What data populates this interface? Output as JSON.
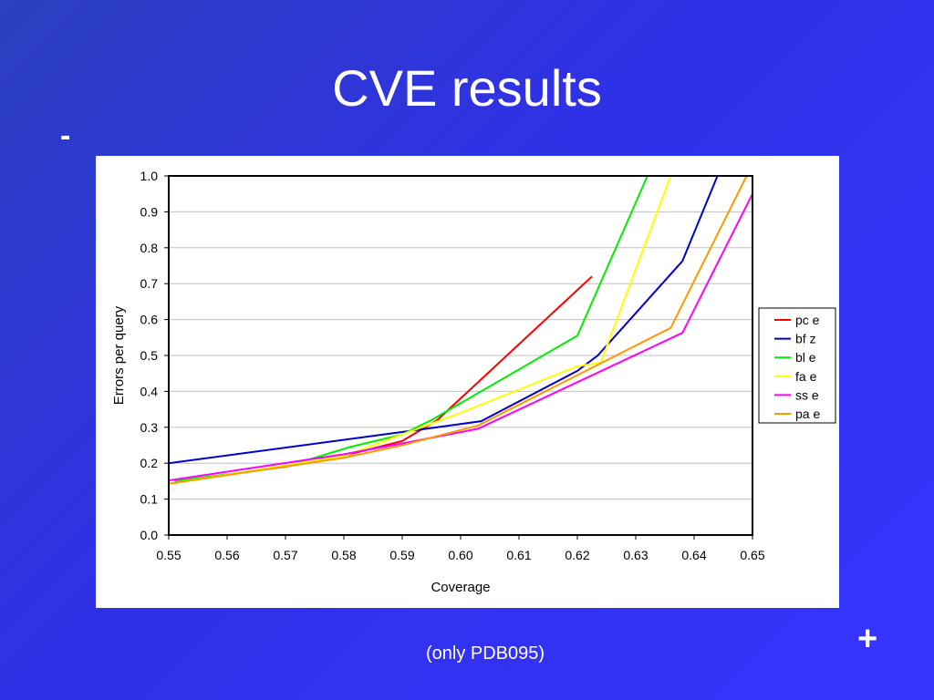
{
  "slide": {
    "title": "CVE results",
    "minus_label": "-",
    "plus_label": "+",
    "caption": "(only PDB095)"
  },
  "chart_data": {
    "type": "line",
    "title": "",
    "xlabel": "Coverage",
    "ylabel": "Errors per query",
    "xlim": [
      0.55,
      0.65
    ],
    "ylim": [
      0.0,
      1.0
    ],
    "x_ticks": [
      "0.55",
      "0.56",
      "0.57",
      "0.58",
      "0.59",
      "0.60",
      "0.61",
      "0.62",
      "0.63",
      "0.64",
      "0.65"
    ],
    "y_ticks": [
      "0.0",
      "0.1",
      "0.2",
      "0.3",
      "0.4",
      "0.5",
      "0.6",
      "0.7",
      "0.8",
      "0.9",
      "1.0"
    ],
    "grid": "horizontal",
    "legend_position": "right",
    "series": [
      {
        "name": "pc e",
        "color": "#ff0000",
        "points": [
          [
            0.551,
            0.15
          ],
          [
            0.57,
            0.19
          ],
          [
            0.581,
            0.225
          ],
          [
            0.59,
            0.262
          ],
          [
            0.596,
            0.32
          ],
          [
            0.6225,
            0.72
          ]
        ]
      },
      {
        "name": "bf z",
        "color": "#0000cc",
        "points": [
          [
            0.55,
            0.2
          ],
          [
            0.596,
            0.3
          ],
          [
            0.6035,
            0.317
          ],
          [
            0.62,
            0.457
          ],
          [
            0.6235,
            0.5
          ],
          [
            0.638,
            0.763
          ],
          [
            0.644,
            1.0
          ]
        ]
      },
      {
        "name": "bl e",
        "color": "#00ee00",
        "points": [
          [
            0.551,
            0.15
          ],
          [
            0.57,
            0.19
          ],
          [
            0.581,
            0.245
          ],
          [
            0.59,
            0.28
          ],
          [
            0.595,
            0.32
          ],
          [
            0.62,
            0.555
          ],
          [
            0.632,
            1.0
          ]
        ]
      },
      {
        "name": "fa e",
        "color": "#ffff00",
        "points": [
          [
            0.551,
            0.145
          ],
          [
            0.58,
            0.22
          ],
          [
            0.6,
            0.34
          ],
          [
            0.62,
            0.47
          ],
          [
            0.624,
            0.48
          ],
          [
            0.636,
            1.0
          ]
        ]
      },
      {
        "name": "ss e",
        "color": "#ff00ff",
        "points": [
          [
            0.55,
            0.152
          ],
          [
            0.58,
            0.225
          ],
          [
            0.59,
            0.255
          ],
          [
            0.603,
            0.296
          ],
          [
            0.638,
            0.563
          ],
          [
            0.65,
            0.95
          ]
        ]
      },
      {
        "name": "pa e",
        "color": "#ff9900",
        "points": [
          [
            0.55,
            0.143
          ],
          [
            0.58,
            0.215
          ],
          [
            0.59,
            0.25
          ],
          [
            0.603,
            0.305
          ],
          [
            0.636,
            0.577
          ],
          [
            0.649,
            1.0
          ]
        ]
      }
    ]
  }
}
